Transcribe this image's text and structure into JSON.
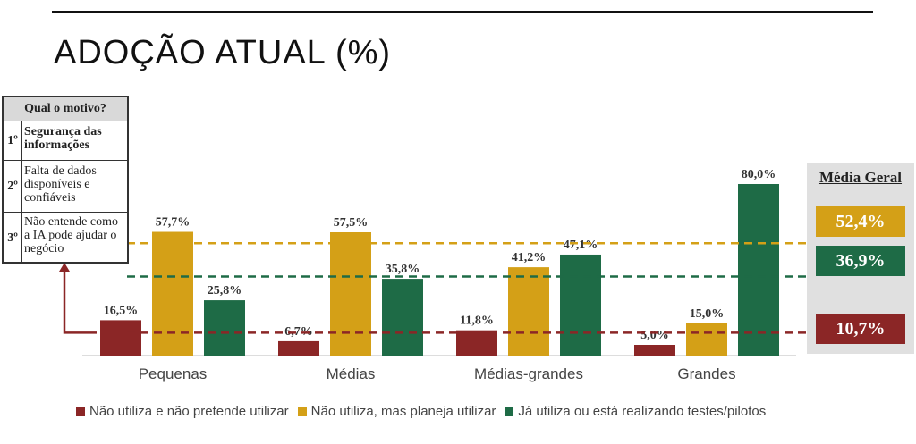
{
  "title": "ADOÇÃO ATUAL (%)",
  "colors": {
    "red": "#8b2626",
    "gold": "#d4a017",
    "green": "#1e6b46"
  },
  "chart_data": {
    "type": "bar",
    "categories": [
      "Pequenas",
      "Médias",
      "Médias-grandes",
      "Grandes"
    ],
    "series": [
      {
        "name": "Não utiliza e não pretende utilizar",
        "color": "#8b2626",
        "values": [
          16.5,
          6.7,
          11.8,
          5.0
        ],
        "labels": [
          "16,5%",
          "6,7%",
          "11,8%",
          "5,0%"
        ]
      },
      {
        "name": "Não utiliza, mas planeja utilizar",
        "color": "#d4a017",
        "values": [
          57.7,
          57.5,
          41.2,
          15.0
        ],
        "labels": [
          "57,7%",
          "57,5%",
          "41,2%",
          "15,0%"
        ]
      },
      {
        "name": "Já utiliza ou está realizando testes/pilotos",
        "color": "#1e6b46",
        "values": [
          25.8,
          35.8,
          47.1,
          80.0
        ],
        "labels": [
          "25,8%",
          "35,8%",
          "47,1%",
          "80,0%"
        ]
      }
    ],
    "averages": [
      {
        "value": 52.4,
        "label": "52,4%",
        "color": "#d4a017"
      },
      {
        "value": 36.9,
        "label": "36,9%",
        "color": "#1e6b46"
      },
      {
        "value": 10.7,
        "label": "10,7%",
        "color": "#8b2626"
      }
    ],
    "ylim": [
      0,
      100
    ],
    "grid": false,
    "legend": "bottom"
  },
  "average_panel": {
    "title": "Média Geral",
    "values": [
      "52,4%",
      "36,9%",
      "10,7%"
    ]
  },
  "reasons": {
    "title": "Qual o motivo?",
    "items": [
      {
        "rank": "1º",
        "text": "Segurança das informações"
      },
      {
        "rank": "2º",
        "text": "Falta de dados disponíveis e confiáveis"
      },
      {
        "rank": "3º",
        "text": "Não entende como a IA pode ajudar o negócio"
      }
    ]
  }
}
